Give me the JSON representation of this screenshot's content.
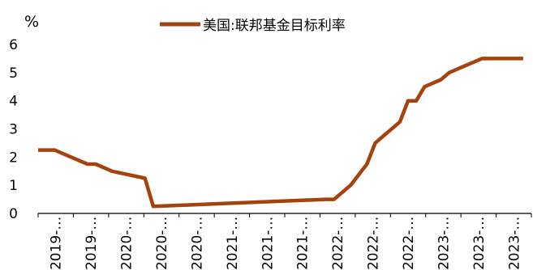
{
  "chart_data": {
    "type": "line",
    "ylabel": "%",
    "ylim": [
      0,
      6
    ],
    "yticks": [
      "0",
      "1",
      "2",
      "3",
      "4",
      "5",
      "6"
    ],
    "xtick_labels": [
      "2019-…",
      "2019-…",
      "2020-…",
      "2020-…",
      "2020-…",
      "2021-…",
      "2021-…",
      "2021-…",
      "2022-…",
      "2022-…",
      "2022-…",
      "2023-…",
      "2023-…",
      "2023-…"
    ],
    "series": [
      {
        "name": "美国:联邦基金目标利率",
        "color": "#a5430f",
        "x": [
          "2019-01",
          "2019-03",
          "2019-05",
          "2019-07",
          "2019-08",
          "2019-10",
          "2020-02",
          "2020-03",
          "2021-12",
          "2022-01",
          "2022-03",
          "2022-05",
          "2022-06",
          "2022-07",
          "2022-09",
          "2022-10",
          "2022-11",
          "2022-12",
          "2023-02",
          "2023-03",
          "2023-05",
          "2023-07",
          "2023-12"
        ],
        "values": [
          2.25,
          2.25,
          2.0,
          1.75,
          1.75,
          1.5,
          1.25,
          0.25,
          0.5,
          0.5,
          1.0,
          1.75,
          2.5,
          2.75,
          3.25,
          4.0,
          4.0,
          4.5,
          4.75,
          5.0,
          5.25,
          5.5,
          5.5
        ]
      }
    ],
    "legend_position": "top-center",
    "grid": false,
    "colors": {
      "axis": "#000000",
      "line": "#a5430f"
    }
  }
}
